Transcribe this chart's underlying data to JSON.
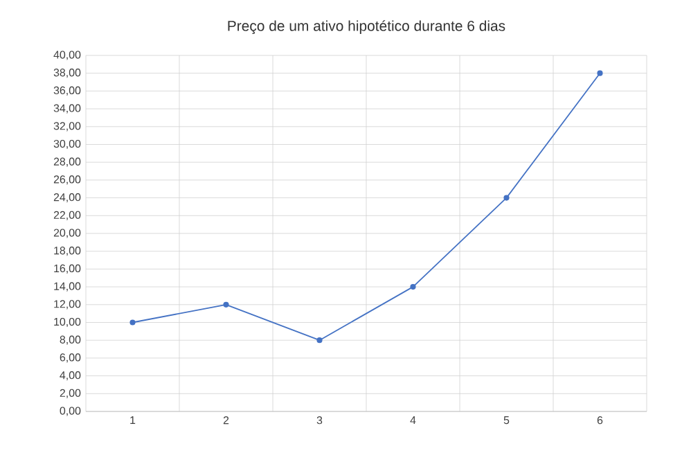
{
  "chart_data": {
    "type": "line",
    "title": "Preço de um ativo hipotético durante 6 dias",
    "categories": [
      "1",
      "2",
      "3",
      "4",
      "5",
      "6"
    ],
    "series": [
      {
        "color": "#4472c4",
        "values": [
          10,
          12,
          8,
          14,
          24,
          38
        ]
      }
    ],
    "ylim": [
      0,
      40
    ],
    "yticks": [
      {
        "value": 0,
        "label": "0,00"
      },
      {
        "value": 2,
        "label": "2,00"
      },
      {
        "value": 4,
        "label": "4,00"
      },
      {
        "value": 6,
        "label": "6,00"
      },
      {
        "value": 8,
        "label": "8,00"
      },
      {
        "value": 10,
        "label": "10,00"
      },
      {
        "value": 12,
        "label": "12,00"
      },
      {
        "value": 14,
        "label": "14,00"
      },
      {
        "value": 16,
        "label": "16,00"
      },
      {
        "value": 18,
        "label": "18,00"
      },
      {
        "value": 20,
        "label": "20,00"
      },
      {
        "value": 22,
        "label": "22,00"
      },
      {
        "value": 24,
        "label": "24,00"
      },
      {
        "value": 26,
        "label": "26,00"
      },
      {
        "value": 28,
        "label": "28,00"
      },
      {
        "value": 30,
        "label": "30,00"
      },
      {
        "value": 32,
        "label": "32,00"
      },
      {
        "value": 34,
        "label": "34,00"
      },
      {
        "value": 36,
        "label": "36,00"
      },
      {
        "value": 38,
        "label": "38,00"
      },
      {
        "value": 40,
        "label": "40,00"
      }
    ],
    "grid": true,
    "marker": "circle",
    "line_style": "solid"
  }
}
